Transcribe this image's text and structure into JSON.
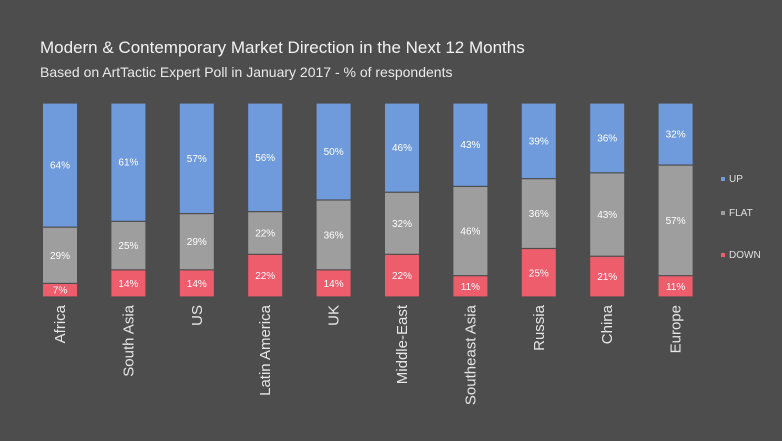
{
  "chart_data": {
    "type": "bar",
    "stacked": true,
    "title": "Modern & Contemporary Market Direction in the Next 12 Months",
    "subtitle": "Based on ArtTactic Expert Poll in January 2017 - % of respondents",
    "categories": [
      "Africa",
      "South Asia",
      "US",
      "Latin America",
      "UK",
      "Middle-East",
      "Southeast Asia",
      "Russia",
      "China",
      "Europe"
    ],
    "series": [
      {
        "name": "UP",
        "color": "#6f9bdd",
        "values": [
          64,
          61,
          57,
          56,
          50,
          46,
          43,
          39,
          36,
          32
        ]
      },
      {
        "name": "FLAT",
        "color": "#9e9e9e",
        "values": [
          29,
          25,
          29,
          22,
          36,
          32,
          46,
          36,
          43,
          57
        ]
      },
      {
        "name": "DOWN",
        "color": "#ee5d6c",
        "values": [
          7,
          14,
          14,
          22,
          14,
          22,
          11,
          25,
          21,
          11
        ]
      }
    ],
    "value_suffix": "%",
    "ylim": [
      0,
      100
    ],
    "legend_position": "right"
  }
}
